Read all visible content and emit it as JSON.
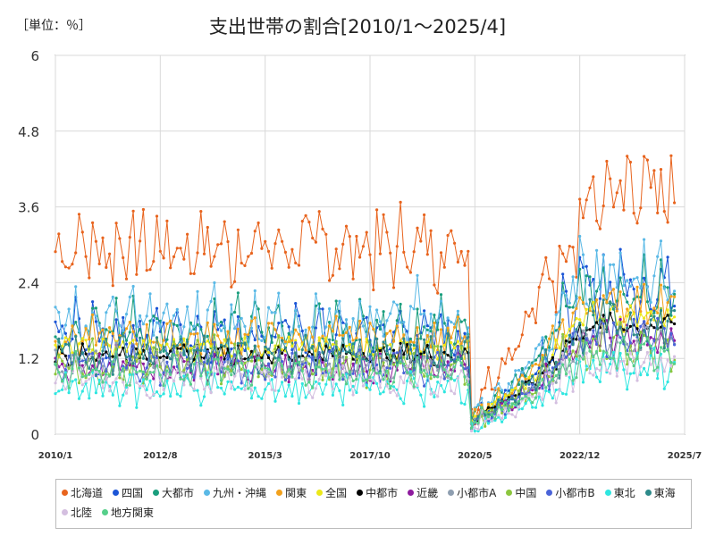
{
  "unit_label": "［単位：％］",
  "chart_data": {
    "type": "line",
    "title": "支出世帯の割合[2010/1～2025/4]",
    "y_ticks": [
      "0",
      "1.2",
      "2.4",
      "3.6",
      "4.8",
      "6"
    ],
    "ylim": [
      0,
      6
    ],
    "x_ticks": [
      "2010/1",
      "2012/8",
      "2015/3",
      "2017/10",
      "2020/5",
      "2022/12",
      "2025/7"
    ],
    "x_range": [
      "2010/1",
      "2025/7"
    ],
    "x_start": "2010/1",
    "x_end": "2025/4",
    "grid": true,
    "legend_position": "bottom",
    "series": [
      {
        "name": "北海道",
        "color": "#e8641e",
        "level_pre": 2.9,
        "level_post": 3.6,
        "amplitude": 0.7,
        "pandemic_low": 0.4
      },
      {
        "name": "四国",
        "color": "#1b55d6",
        "level_pre": 1.55,
        "level_post": 2.3,
        "amplitude": 0.45,
        "pandemic_low": 0.15
      },
      {
        "name": "大都市",
        "color": "#1a9e7d",
        "level_pre": 1.65,
        "level_post": 2.3,
        "amplitude": 0.4,
        "pandemic_low": 0.2
      },
      {
        "name": "九州・沖縄",
        "color": "#5ab9e6",
        "level_pre": 1.75,
        "level_post": 2.5,
        "amplitude": 0.5,
        "pandemic_low": 0.2
      },
      {
        "name": "関東",
        "color": "#f2a11c",
        "level_pre": 1.5,
        "level_post": 2.05,
        "amplitude": 0.3,
        "pandemic_low": 0.2
      },
      {
        "name": "全国",
        "color": "#ece818",
        "level_pre": 1.35,
        "level_post": 1.85,
        "amplitude": 0.2,
        "pandemic_low": 0.2
      },
      {
        "name": "中都市",
        "color": "#000000",
        "level_pre": 1.25,
        "level_post": 1.7,
        "amplitude": 0.18,
        "pandemic_low": 0.2
      },
      {
        "name": "近畿",
        "color": "#8e1a9e",
        "level_pre": 1.05,
        "level_post": 1.5,
        "amplitude": 0.25,
        "pandemic_low": 0.15
      },
      {
        "name": "小都市A",
        "color": "#8e9eb0",
        "level_pre": 1.1,
        "level_post": 1.45,
        "amplitude": 0.25,
        "pandemic_low": 0.15
      },
      {
        "name": "中国",
        "color": "#8cc63e",
        "level_pre": 1.1,
        "level_post": 1.4,
        "amplitude": 0.35,
        "pandemic_low": 0.15
      },
      {
        "name": "小都市B",
        "color": "#4a63d8",
        "level_pre": 1.05,
        "level_post": 1.5,
        "amplitude": 0.3,
        "pandemic_low": 0.15
      },
      {
        "name": "東北",
        "color": "#2ee6e0",
        "level_pre": 0.7,
        "level_post": 1.0,
        "amplitude": 0.3,
        "pandemic_low": 0.1
      },
      {
        "name": "東海",
        "color": "#2d8a8a",
        "level_pre": 1.25,
        "level_post": 1.7,
        "amplitude": 0.35,
        "pandemic_low": 0.15
      },
      {
        "name": "北陸",
        "color": "#d4bfe0",
        "level_pre": 0.85,
        "level_post": 1.05,
        "amplitude": 0.3,
        "pandemic_low": 0.1
      },
      {
        "name": "地方関東",
        "color": "#56cf8a",
        "level_pre": 0.95,
        "level_post": 1.25,
        "amplitude": 0.25,
        "pandemic_low": 0.15
      }
    ]
  }
}
